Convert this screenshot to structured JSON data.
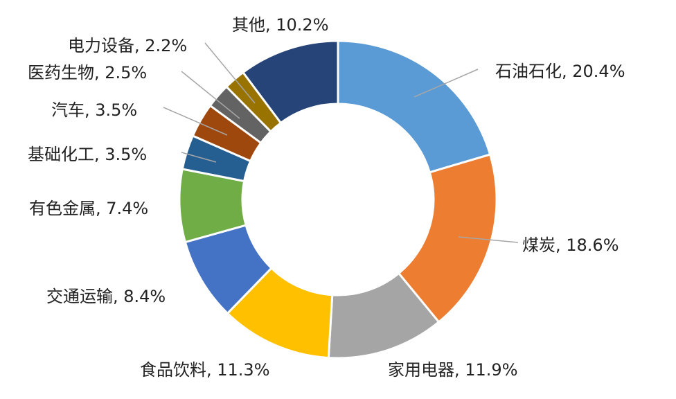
{
  "chart_data": {
    "type": "pie",
    "variant": "donut",
    "title": "",
    "slices": [
      {
        "label": "石油石化, 20.4%",
        "name": "石油石化",
        "value": 20.4,
        "color": "#5B9BD5"
      },
      {
        "label": "煤炭, 18.6%",
        "name": "煤炭",
        "value": 18.6,
        "color": "#ED7D31"
      },
      {
        "label": "家用电器, 11.9%",
        "name": "家用电器",
        "value": 11.9,
        "color": "#A5A5A5"
      },
      {
        "label": "食品饮料, 11.3%",
        "name": "食品饮料",
        "value": 11.3,
        "color": "#FFC000"
      },
      {
        "label": "交通运输, 8.4%",
        "name": "交通运输",
        "value": 8.4,
        "color": "#4472C4"
      },
      {
        "label": "有色金属, 7.4%",
        "name": "有色金属",
        "value": 7.4,
        "color": "#70AD47"
      },
      {
        "label": "基础化工, 3.5%",
        "name": "基础化工",
        "value": 3.5,
        "color": "#255E91"
      },
      {
        "label": "汽车, 3.5%",
        "name": "汽车",
        "value": 3.5,
        "color": "#9E480E"
      },
      {
        "label": "医药生物, 2.5%",
        "name": "医药生物",
        "value": 2.5,
        "color": "#636363"
      },
      {
        "label": "电力设备, 2.2%",
        "name": "电力设备",
        "value": 2.2,
        "color": "#997300"
      },
      {
        "label": "其他, 10.2%",
        "name": "其他",
        "value": 10.2,
        "color": "#264478"
      }
    ]
  }
}
